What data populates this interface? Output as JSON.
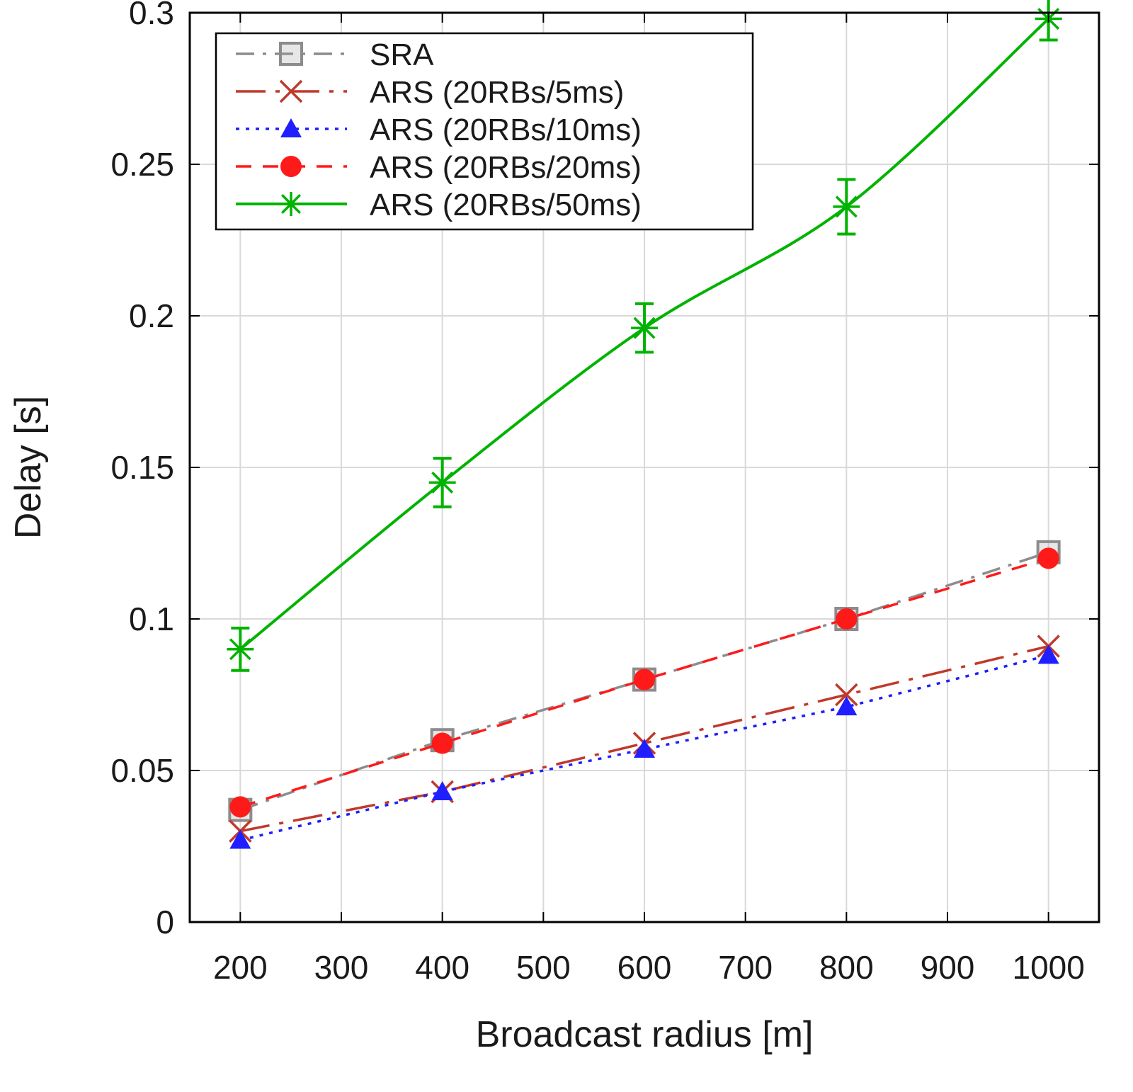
{
  "chart_data": {
    "type": "line",
    "xlabel": "Broadcast radius [m]",
    "ylabel": "Delay [s]",
    "xlim": [
      150,
      1050
    ],
    "ylim": [
      0,
      0.3
    ],
    "xticks": [
      200,
      300,
      400,
      500,
      600,
      700,
      800,
      900,
      1000
    ],
    "xtick_labels": [
      "200",
      "300",
      "400",
      "500",
      "600",
      "700",
      "800",
      "900",
      "1000"
    ],
    "yticks": [
      0,
      0.05,
      0.1,
      0.15,
      0.2,
      0.25,
      0.3
    ],
    "ytick_labels": [
      "0",
      "0.05",
      "0.1",
      "0.15",
      "0.2",
      "0.25",
      "0.3"
    ],
    "grid": true,
    "legend_position": "top-left",
    "x": [
      200,
      400,
      600,
      800,
      1000
    ],
    "series": [
      {
        "name": "SRA",
        "color": "#8c8c8c",
        "marker": "open-square",
        "line_style": "dash-dot",
        "values": [
          0.037,
          0.06,
          0.08,
          0.1,
          0.122
        ]
      },
      {
        "name": "ARS (20RBs/5ms)",
        "color": "#c0392b",
        "marker": "x",
        "line_style": "long-dash-dot",
        "values": [
          0.03,
          0.043,
          0.059,
          0.075,
          0.091
        ]
      },
      {
        "name": "ARS (20RBs/10ms)",
        "color": "#1f1fff",
        "marker": "triangle",
        "line_style": "dotted",
        "values": [
          0.027,
          0.043,
          0.057,
          0.071,
          0.088
        ]
      },
      {
        "name": "ARS (20RBs/20ms)",
        "color": "#ff1a1a",
        "marker": "filled-circle",
        "line_style": "dashed",
        "values": [
          0.038,
          0.059,
          0.08,
          0.1,
          0.12
        ]
      },
      {
        "name": "ARS (20RBs/50ms)",
        "color": "#00b300",
        "marker": "asterisk",
        "line_style": "solid",
        "values": [
          0.09,
          0.145,
          0.196,
          0.236,
          0.298
        ],
        "error": [
          0.007,
          0.008,
          0.008,
          0.009,
          0.007
        ]
      }
    ]
  }
}
